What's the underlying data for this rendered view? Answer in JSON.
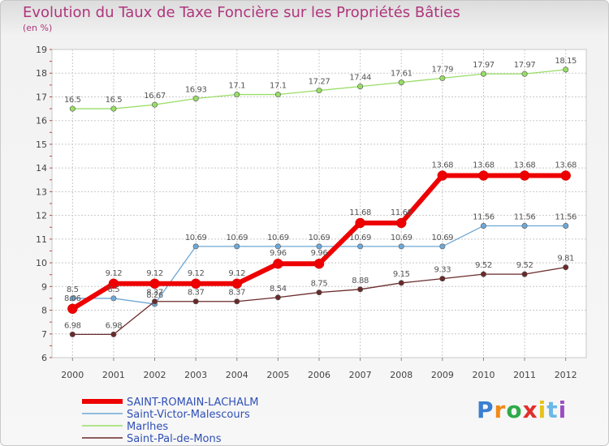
{
  "chart_data": {
    "type": "line",
    "title": "Evolution du Taux de Taxe Foncière sur les Propriétés Bâties",
    "subtitle": "(en %)",
    "x": [
      "2000",
      "2001",
      "2002",
      "2003",
      "2004",
      "2005",
      "2006",
      "2007",
      "2008",
      "2009",
      "2010",
      "2011",
      "2012"
    ],
    "ylim": [
      6,
      19
    ],
    "yticks": [
      "6",
      "7",
      "8",
      "9",
      "10",
      "11",
      "12",
      "13",
      "14",
      "15",
      "16",
      "17",
      "18",
      "19"
    ],
    "grid": true,
    "legend_position": "bottom-left",
    "series": [
      {
        "name": "SAINT-ROMAIN-LACHALM",
        "color": "#ee0000",
        "values": [
          8.06,
          9.12,
          9.12,
          9.12,
          9.12,
          9.96,
          9.96,
          11.68,
          11.68,
          13.68,
          13.68,
          13.68,
          13.68
        ],
        "labels": [
          "8.06",
          "9.12",
          "9.12",
          "9.12",
          "9.12",
          "9.96",
          "9.96",
          "11.68",
          "11.68",
          "13.68",
          "13.68",
          "13.68",
          "13.68"
        ]
      },
      {
        "name": "Saint-Victor-Malescours",
        "color": "#6fa8d6",
        "values": [
          8.5,
          8.5,
          8.26,
          10.69,
          10.69,
          10.69,
          10.69,
          10.69,
          10.69,
          10.69,
          11.56,
          11.56,
          11.56
        ],
        "labels": [
          "8.5",
          "8.5",
          "8.26",
          "10.69",
          "10.69",
          "10.69",
          "10.69",
          "10.69",
          "10.69",
          "10.69",
          "11.56",
          "11.56",
          "11.56"
        ]
      },
      {
        "name": "Marlhes",
        "color": "#99dd66",
        "values": [
          16.5,
          16.5,
          16.67,
          16.93,
          17.1,
          17.1,
          17.27,
          17.44,
          17.61,
          17.79,
          17.97,
          17.97,
          18.15
        ],
        "labels": [
          "16.5",
          "16.5",
          "16.67",
          "16.93",
          "17.1",
          "17.1",
          "17.27",
          "17.44",
          "17.61",
          "17.79",
          "17.97",
          "17.97",
          "18.15"
        ]
      },
      {
        "name": "Saint-Pal-de-Mons",
        "color": "#6b2a2a",
        "values": [
          6.98,
          6.98,
          8.37,
          8.37,
          8.37,
          8.54,
          8.75,
          8.88,
          9.15,
          9.33,
          9.52,
          9.52,
          9.81
        ],
        "labels": [
          "6.98",
          "6.98",
          "8.37",
          "8.37",
          "8.37",
          "8.54",
          "8.75",
          "8.88",
          "9.15",
          "9.33",
          "9.52",
          "9.52",
          "9.81"
        ]
      }
    ]
  },
  "logo": {
    "text": "Proxiti",
    "colors": [
      "#3a7fd0",
      "#f08a1a",
      "#2faa4a",
      "#e0302a",
      "#e6c21a",
      "#6ab8e8",
      "#9a4ec0"
    ]
  }
}
